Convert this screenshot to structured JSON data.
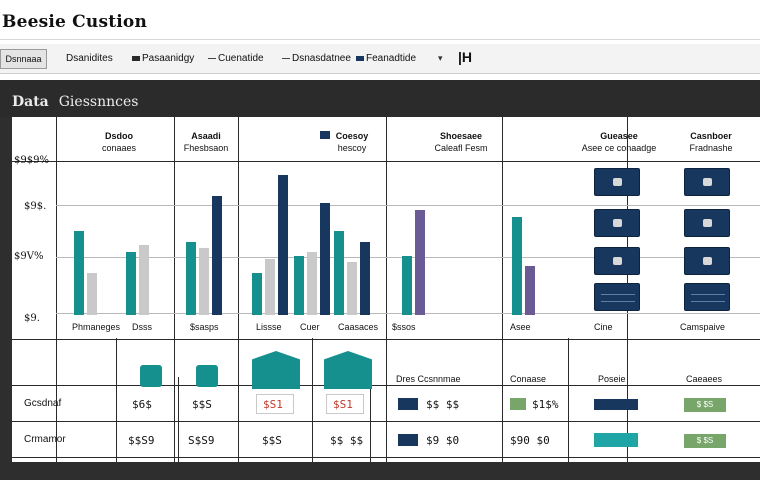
{
  "app": {
    "title": "Beesie Custion"
  },
  "toolbar": {
    "button_label": "Dsnnaaa",
    "items": [
      {
        "label": "Dsanidites",
        "swatch": ""
      },
      {
        "label": "Pasaanidgy",
        "swatch": "#2a2a2a"
      },
      {
        "label": "Cuenatide",
        "swatch": "line"
      },
      {
        "label": "Dsnasdatnee",
        "swatch": "line"
      },
      {
        "label": "Feanadtide",
        "swatch": "#17375e"
      }
    ],
    "pipe_label": "|H"
  },
  "panel": {
    "title_bold": "Data",
    "title_rest": "Giessnnces"
  },
  "columns": [
    {
      "t1": "Dsdoo",
      "t2": "conaaes"
    },
    {
      "t1": "Asaadi",
      "t2": "Fhesbsaon"
    },
    {
      "t1": "Coesoy",
      "t2": "hescoy"
    },
    {
      "t1": "Shoesaee",
      "t2": "Caleafl Fesm"
    },
    {
      "t1": "Gueasee",
      "t2": "Asee ce conaadge"
    },
    {
      "t1": "Casnboer",
      "t2": "Fradnashe"
    }
  ],
  "y_labels": [
    "$9$9%",
    "$9$.",
    "$9V%",
    "$9."
  ],
  "categories": [
    "Phmaneges",
    "Dsss",
    "$sasps",
    "Lissse",
    "Cuer",
    "Caasaces",
    "$ssos",
    "Asee",
    "Cine",
    "Camspaive"
  ],
  "legend_colors": {
    "teal": "#168f8f",
    "teal_light": "#1fa5a5",
    "navy": "#17375e",
    "gray": "#c9c9c9",
    "purple": "#6b5b95",
    "green": "#77a56a"
  },
  "chart_data": {
    "type": "bar",
    "categories": [
      "Phmaneges",
      "Dsss",
      "$sasps",
      "Lissse",
      "Cuer",
      "Caasaces",
      "$ssos",
      "Asee"
    ],
    "series": [
      {
        "color": "#168f8f",
        "values": [
          60,
          45,
          52,
          30,
          42,
          60,
          42,
          70
        ]
      },
      {
        "color": "#c9c9c9",
        "values": [
          30,
          50,
          48,
          40,
          45,
          38,
          0,
          0
        ]
      },
      {
        "color": "#17375e",
        "values": [
          0,
          0,
          85,
          100,
          80,
          52,
          0,
          0
        ]
      },
      {
        "color": "#6b5b95",
        "values": [
          0,
          0,
          0,
          0,
          0,
          0,
          75,
          35
        ]
      }
    ]
  },
  "node_row_label": "Dres Ccsnnmae",
  "node_row_extra": [
    "Conaase",
    "Poseie",
    "Caeaees"
  ],
  "rows": [
    {
      "label": "Gcsdnaf",
      "v1": "$6$",
      "v2": "$$S",
      "red1": "$S1",
      "red2": "$S1",
      "v3": "$$ $$",
      "v4": "$1$%",
      "green": "$ $S"
    },
    {
      "label": "Crmamor",
      "v1": "$$S9",
      "v2": "S$S9",
      "red1": "$$S",
      "red2": "$$ $$",
      "v3": "$9 $0",
      "v4": "$90 $0",
      "green": "$ $S"
    }
  ]
}
